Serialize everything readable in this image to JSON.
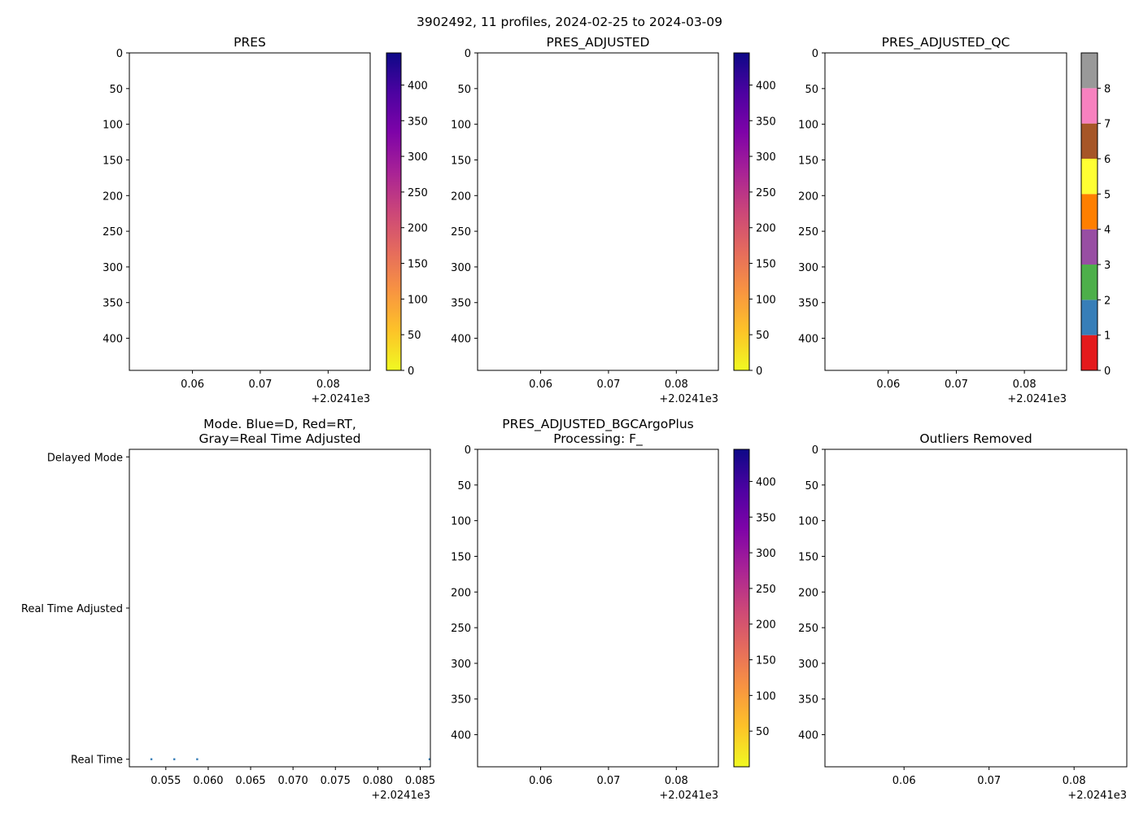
{
  "figure": {
    "suptitle": "3902492, 11 profiles, 2024-02-25 to 2024-03-09"
  },
  "colors": {
    "background": "#ffffff",
    "plasma_r": [
      "#f0f921",
      "#fdc328",
      "#f89441",
      "#e56b5d",
      "#cb4679",
      "#a82296",
      "#7e03a8",
      "#4c02a1",
      "#0d0887"
    ],
    "qc_colors": [
      "#e41a1c",
      "#377eb8",
      "#4daf4a",
      "#984ea3",
      "#ff7f00",
      "#ffff33",
      "#a65628",
      "#f781bf",
      "#999999"
    ],
    "mode_marker": "#377eb8"
  },
  "chart_data": [
    {
      "id": "pres",
      "type": "scatter",
      "title": "PRES",
      "x_offset_label": "+2.0241e3",
      "x_ticks": [
        {
          "value": 0.06,
          "label": "0.06"
        },
        {
          "value": 0.07,
          "label": "0.07"
        },
        {
          "value": 0.08,
          "label": "0.08"
        }
      ],
      "xlim": [
        0.0507,
        0.0862
      ],
      "y_ticks": [
        {
          "value": 0,
          "label": "0"
        },
        {
          "value": 50,
          "label": "50"
        },
        {
          "value": 100,
          "label": "100"
        },
        {
          "value": 150,
          "label": "150"
        },
        {
          "value": 200,
          "label": "200"
        },
        {
          "value": 250,
          "label": "250"
        },
        {
          "value": 300,
          "label": "300"
        },
        {
          "value": 350,
          "label": "350"
        },
        {
          "value": 400,
          "label": "400"
        }
      ],
      "ylim": [
        445,
        0
      ],
      "points": [],
      "colorbar": {
        "kind": "continuous",
        "range": [
          0,
          445
        ],
        "ticks": [
          {
            "value": 0,
            "label": "0"
          },
          {
            "value": 50,
            "label": "50"
          },
          {
            "value": 100,
            "label": "100"
          },
          {
            "value": 150,
            "label": "150"
          },
          {
            "value": 200,
            "label": "200"
          },
          {
            "value": 250,
            "label": "250"
          },
          {
            "value": 300,
            "label": "300"
          },
          {
            "value": 350,
            "label": "350"
          },
          {
            "value": 400,
            "label": "400"
          }
        ]
      }
    },
    {
      "id": "pres_adjusted",
      "type": "scatter",
      "title": "PRES_ADJUSTED",
      "x_offset_label": "+2.0241e3",
      "x_ticks": [
        {
          "value": 0.06,
          "label": "0.06"
        },
        {
          "value": 0.07,
          "label": "0.07"
        },
        {
          "value": 0.08,
          "label": "0.08"
        }
      ],
      "xlim": [
        0.0507,
        0.0862
      ],
      "y_ticks": [
        {
          "value": 0,
          "label": "0"
        },
        {
          "value": 50,
          "label": "50"
        },
        {
          "value": 100,
          "label": "100"
        },
        {
          "value": 150,
          "label": "150"
        },
        {
          "value": 200,
          "label": "200"
        },
        {
          "value": 250,
          "label": "250"
        },
        {
          "value": 300,
          "label": "300"
        },
        {
          "value": 350,
          "label": "350"
        },
        {
          "value": 400,
          "label": "400"
        }
      ],
      "ylim": [
        445,
        0
      ],
      "points": [],
      "colorbar": {
        "kind": "continuous",
        "range": [
          0,
          445
        ],
        "ticks": [
          {
            "value": 0,
            "label": "0"
          },
          {
            "value": 50,
            "label": "50"
          },
          {
            "value": 100,
            "label": "100"
          },
          {
            "value": 150,
            "label": "150"
          },
          {
            "value": 200,
            "label": "200"
          },
          {
            "value": 250,
            "label": "250"
          },
          {
            "value": 300,
            "label": "300"
          },
          {
            "value": 350,
            "label": "350"
          },
          {
            "value": 400,
            "label": "400"
          }
        ]
      }
    },
    {
      "id": "pres_adjusted_qc",
      "type": "scatter",
      "title": "PRES_ADJUSTED_QC",
      "x_offset_label": "+2.0241e3",
      "x_ticks": [
        {
          "value": 0.06,
          "label": "0.06"
        },
        {
          "value": 0.07,
          "label": "0.07"
        },
        {
          "value": 0.08,
          "label": "0.08"
        }
      ],
      "xlim": [
        0.0507,
        0.0862
      ],
      "y_ticks": [
        {
          "value": 0,
          "label": "0"
        },
        {
          "value": 50,
          "label": "50"
        },
        {
          "value": 100,
          "label": "100"
        },
        {
          "value": 150,
          "label": "150"
        },
        {
          "value": 200,
          "label": "200"
        },
        {
          "value": 250,
          "label": "250"
        },
        {
          "value": 300,
          "label": "300"
        },
        {
          "value": 350,
          "label": "350"
        },
        {
          "value": 400,
          "label": "400"
        }
      ],
      "ylim": [
        445,
        0
      ],
      "points": [],
      "colorbar": {
        "kind": "discrete",
        "range": [
          0,
          9
        ],
        "ticks": [
          {
            "value": 0,
            "label": "0"
          },
          {
            "value": 1,
            "label": "1"
          },
          {
            "value": 2,
            "label": "2"
          },
          {
            "value": 3,
            "label": "3"
          },
          {
            "value": 4,
            "label": "4"
          },
          {
            "value": 5,
            "label": "5"
          },
          {
            "value": 6,
            "label": "6"
          },
          {
            "value": 7,
            "label": "7"
          },
          {
            "value": 8,
            "label": "8"
          }
        ]
      }
    },
    {
      "id": "mode",
      "type": "scatter",
      "title": "Mode. Blue=D, Red=RT,\nGray=Real Time Adjusted",
      "x_offset_label": "+2.0241e3",
      "x_ticks": [
        {
          "value": 0.055,
          "label": "0.055"
        },
        {
          "value": 0.06,
          "label": "0.060"
        },
        {
          "value": 0.065,
          "label": "0.065"
        },
        {
          "value": 0.07,
          "label": "0.070"
        },
        {
          "value": 0.075,
          "label": "0.075"
        },
        {
          "value": 0.08,
          "label": "0.080"
        },
        {
          "value": 0.085,
          "label": "0.085"
        }
      ],
      "xlim": [
        0.0507,
        0.0862
      ],
      "y_ticks": [
        {
          "value": 0,
          "label": "Delayed Mode"
        },
        {
          "value": 1,
          "label": "Real Time Adjusted"
        },
        {
          "value": 2,
          "label": "Real Time"
        }
      ],
      "ylim": [
        2.05,
        -0.05
      ],
      "points": [
        {
          "x": 0.0533,
          "y": 2
        },
        {
          "x": 0.056,
          "y": 2
        },
        {
          "x": 0.0587,
          "y": 2
        },
        {
          "x": 0.0861,
          "y": 2
        }
      ],
      "colorbar": null
    },
    {
      "id": "pres_adjusted_bgc",
      "type": "scatter",
      "title": "PRES_ADJUSTED_BGCArgoPlus\nProcessing: F_",
      "x_offset_label": "+2.0241e3",
      "x_ticks": [
        {
          "value": 0.06,
          "label": "0.06"
        },
        {
          "value": 0.07,
          "label": "0.07"
        },
        {
          "value": 0.08,
          "label": "0.08"
        }
      ],
      "xlim": [
        0.0507,
        0.0862
      ],
      "y_ticks": [
        {
          "value": 0,
          "label": "0"
        },
        {
          "value": 50,
          "label": "50"
        },
        {
          "value": 100,
          "label": "100"
        },
        {
          "value": 150,
          "label": "150"
        },
        {
          "value": 200,
          "label": "200"
        },
        {
          "value": 250,
          "label": "250"
        },
        {
          "value": 300,
          "label": "300"
        },
        {
          "value": 350,
          "label": "350"
        },
        {
          "value": 400,
          "label": "400"
        }
      ],
      "ylim": [
        445,
        0
      ],
      "points": [],
      "colorbar": {
        "kind": "continuous",
        "range": [
          0,
          445
        ],
        "ticks": [
          {
            "value": 50,
            "label": "50"
          },
          {
            "value": 100,
            "label": "100"
          },
          {
            "value": 150,
            "label": "150"
          },
          {
            "value": 200,
            "label": "200"
          },
          {
            "value": 250,
            "label": "250"
          },
          {
            "value": 300,
            "label": "300"
          },
          {
            "value": 350,
            "label": "350"
          },
          {
            "value": 400,
            "label": "400"
          }
        ]
      }
    },
    {
      "id": "outliers_removed",
      "type": "scatter",
      "title": "Outliers Removed",
      "x_offset_label": "+2.0241e3",
      "x_ticks": [
        {
          "value": 0.06,
          "label": "0.06"
        },
        {
          "value": 0.07,
          "label": "0.07"
        },
        {
          "value": 0.08,
          "label": "0.08"
        }
      ],
      "xlim": [
        0.0507,
        0.0862
      ],
      "y_ticks": [
        {
          "value": 0,
          "label": "0"
        },
        {
          "value": 50,
          "label": "50"
        },
        {
          "value": 100,
          "label": "100"
        },
        {
          "value": 150,
          "label": "150"
        },
        {
          "value": 200,
          "label": "200"
        },
        {
          "value": 250,
          "label": "250"
        },
        {
          "value": 300,
          "label": "300"
        },
        {
          "value": 350,
          "label": "350"
        },
        {
          "value": 400,
          "label": "400"
        }
      ],
      "ylim": [
        445,
        0
      ],
      "points": [],
      "colorbar": null
    }
  ]
}
